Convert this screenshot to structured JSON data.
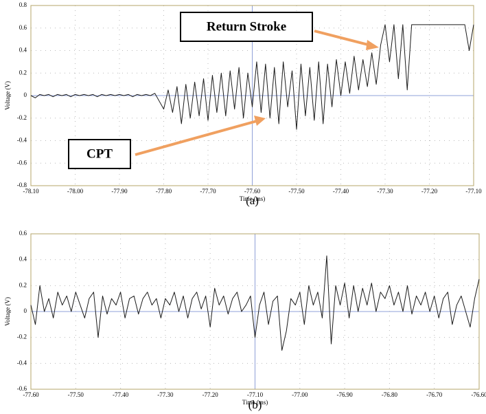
{
  "chart_data": [
    {
      "type": "line",
      "caption": "(a)",
      "xlabel": "Time (ms)",
      "ylabel": "Voltage (V)",
      "annotations": [
        "Return Stroke",
        "CPT"
      ],
      "grid": true,
      "color": "#1a1a1a",
      "xlim": [
        -78.1,
        -77.1
      ],
      "ylim": [
        -0.8,
        0.8
      ],
      "xticks": [
        {
          "value": -78.1,
          "label": "-78.10"
        },
        {
          "value": -78.0,
          "label": "-78.00"
        },
        {
          "value": -77.9,
          "label": "-77.90"
        },
        {
          "value": -77.8,
          "label": "-77.80"
        },
        {
          "value": -77.7,
          "label": "-77.70"
        },
        {
          "value": -77.6,
          "label": "-77.60"
        },
        {
          "value": -77.5,
          "label": "-77.50"
        },
        {
          "value": -77.4,
          "label": "-77.40"
        },
        {
          "value": -77.3,
          "label": "-77.30"
        },
        {
          "value": -77.2,
          "label": "-77.20"
        },
        {
          "value": -77.1,
          "label": "-77.10"
        }
      ],
      "yticks": [
        -0.8,
        -0.6,
        -0.4,
        -0.2,
        0,
        0.2,
        0.4,
        0.6,
        0.8
      ],
      "x": [
        -78.1,
        -78.09,
        -78.08,
        -78.07,
        -78.06,
        -78.05,
        -78.04,
        -78.03,
        -78.02,
        -78.01,
        -78.0,
        -77.99,
        -77.98,
        -77.97,
        -77.96,
        -77.95,
        -77.94,
        -77.93,
        -77.92,
        -77.91,
        -77.9,
        -77.89,
        -77.88,
        -77.87,
        -77.86,
        -77.85,
        -77.84,
        -77.83,
        -77.82,
        -77.81,
        -77.8,
        -77.79,
        -77.78,
        -77.77,
        -77.76,
        -77.75,
        -77.74,
        -77.73,
        -77.72,
        -77.71,
        -77.7,
        -77.69,
        -77.68,
        -77.67,
        -77.66,
        -77.65,
        -77.64,
        -77.63,
        -77.62,
        -77.61,
        -77.6,
        -77.59,
        -77.58,
        -77.57,
        -77.56,
        -77.55,
        -77.54,
        -77.53,
        -77.52,
        -77.51,
        -77.5,
        -77.49,
        -77.48,
        -77.47,
        -77.46,
        -77.45,
        -77.44,
        -77.43,
        -77.42,
        -77.41,
        -77.4,
        -77.39,
        -77.38,
        -77.37,
        -77.36,
        -77.35,
        -77.34,
        -77.33,
        -77.32,
        -77.31,
        -77.3,
        -77.29,
        -77.28,
        -77.27,
        -77.26,
        -77.25,
        -77.24,
        -77.23,
        -77.22,
        -77.21,
        -77.2,
        -77.19,
        -77.18,
        -77.17,
        -77.16,
        -77.15,
        -77.14,
        -77.13,
        -77.12,
        -77.11,
        -77.1
      ],
      "values": [
        0,
        -0.02,
        0.01,
        0,
        0.01,
        -0.01,
        0.01,
        0,
        0.01,
        -0.01,
        0.01,
        0,
        0.01,
        0,
        0.01,
        -0.01,
        0.01,
        0,
        0.01,
        0,
        0.01,
        0,
        0.01,
        -0.01,
        0.01,
        0,
        0.01,
        0,
        0.02,
        -0.05,
        -0.12,
        0.05,
        -0.15,
        0.08,
        -0.25,
        0.1,
        -0.2,
        0.12,
        -0.18,
        0.15,
        -0.22,
        0.18,
        -0.15,
        0.2,
        -0.18,
        0.22,
        -0.12,
        0.25,
        -0.2,
        0.2,
        -0.1,
        0.3,
        -0.15,
        0.28,
        -0.2,
        0.25,
        -0.25,
        0.3,
        -0.1,
        0.22,
        -0.3,
        0.28,
        -0.18,
        0.25,
        -0.22,
        0.3,
        -0.25,
        0.28,
        -0.1,
        0.32,
        0,
        0.3,
        0.02,
        0.35,
        0.05,
        0.32,
        0.08,
        0.38,
        0.1,
        0.45,
        0.63,
        0.3,
        0.63,
        0.15,
        0.63,
        0.05,
        0.63,
        0.63,
        0.63,
        0.63,
        0.63,
        0.63,
        0.63,
        0.63,
        0.63,
        0.63,
        0.63,
        0.63,
        0.63,
        0.4,
        0.63
      ]
    },
    {
      "type": "line",
      "caption": "(b)",
      "xlabel": "Time (ms)",
      "ylabel": "Voltage (V)",
      "grid": true,
      "color": "#1a1a1a",
      "xlim": [
        -77.6,
        -76.6
      ],
      "ylim": [
        -0.6,
        0.6
      ],
      "xticks": [
        {
          "value": -77.6,
          "label": "-77.60"
        },
        {
          "value": -77.5,
          "label": "-77.50"
        },
        {
          "value": -77.4,
          "label": "-77.40"
        },
        {
          "value": -77.3,
          "label": "-77.30"
        },
        {
          "value": -77.2,
          "label": "-77.20"
        },
        {
          "value": -77.1,
          "label": "-77.10"
        },
        {
          "value": -77.0,
          "label": "-77.00"
        },
        {
          "value": -76.9,
          "label": "-76.90"
        },
        {
          "value": -76.8,
          "label": "-76.80"
        },
        {
          "value": -76.7,
          "label": "-76.70"
        },
        {
          "value": -76.6,
          "label": "-76.60"
        }
      ],
      "yticks": [
        -0.6,
        -0.4,
        -0.2,
        0,
        0.2,
        0.4,
        0.6
      ],
      "x": [
        -77.6,
        -77.59,
        -77.58,
        -77.57,
        -77.56,
        -77.55,
        -77.54,
        -77.53,
        -77.52,
        -77.51,
        -77.5,
        -77.49,
        -77.48,
        -77.47,
        -77.46,
        -77.45,
        -77.44,
        -77.43,
        -77.42,
        -77.41,
        -77.4,
        -77.39,
        -77.38,
        -77.37,
        -77.36,
        -77.35,
        -77.34,
        -77.33,
        -77.32,
        -77.31,
        -77.3,
        -77.29,
        -77.28,
        -77.27,
        -77.26,
        -77.25,
        -77.24,
        -77.23,
        -77.22,
        -77.21,
        -77.2,
        -77.19,
        -77.18,
        -77.17,
        -77.16,
        -77.15,
        -77.14,
        -77.13,
        -77.12,
        -77.11,
        -77.1,
        -77.09,
        -77.08,
        -77.07,
        -77.06,
        -77.05,
        -77.04,
        -77.03,
        -77.02,
        -77.01,
        -77.0,
        -76.99,
        -76.98,
        -76.97,
        -76.96,
        -76.95,
        -76.94,
        -76.93,
        -76.92,
        -76.91,
        -76.9,
        -76.89,
        -76.88,
        -76.87,
        -76.86,
        -76.85,
        -76.84,
        -76.83,
        -76.82,
        -76.81,
        -76.8,
        -76.79,
        -76.78,
        -76.77,
        -76.76,
        -76.75,
        -76.74,
        -76.73,
        -76.72,
        -76.71,
        -76.7,
        -76.69,
        -76.68,
        -76.67,
        -76.66,
        -76.65,
        -76.64,
        -76.63,
        -76.62,
        -76.61,
        -76.6
      ],
      "values": [
        0.05,
        -0.1,
        0.2,
        0,
        0.1,
        -0.05,
        0.15,
        0.05,
        0.12,
        0,
        0.15,
        0.05,
        -0.05,
        0.1,
        0.15,
        -0.2,
        0.12,
        -0.02,
        0.1,
        0.05,
        0.15,
        -0.05,
        0.1,
        0.12,
        -0.02,
        0.1,
        0.15,
        0.05,
        0.1,
        -0.05,
        0.1,
        0.05,
        0.15,
        0,
        0.12,
        -0.05,
        0.1,
        0.15,
        0.02,
        0.12,
        -0.12,
        0.18,
        0.05,
        0.12,
        -0.02,
        0.1,
        0.15,
        0,
        0.05,
        0.12,
        -0.2,
        0.05,
        0.15,
        -0.1,
        0.08,
        0.12,
        -0.3,
        -0.15,
        0.1,
        0.05,
        0.15,
        -0.1,
        0.2,
        0.05,
        0.15,
        -0.05,
        0.43,
        -0.25,
        0.2,
        0.05,
        0.22,
        -0.05,
        0.2,
        0,
        0.18,
        0.05,
        0.22,
        0,
        0.15,
        0.1,
        0.2,
        0.05,
        0.15,
        0,
        0.2,
        -0.02,
        0.12,
        0.05,
        0.15,
        0,
        0.12,
        -0.05,
        0.1,
        0.15,
        -0.1,
        0.05,
        0.12,
        0,
        -0.12,
        0.1,
        0.25
      ]
    }
  ]
}
